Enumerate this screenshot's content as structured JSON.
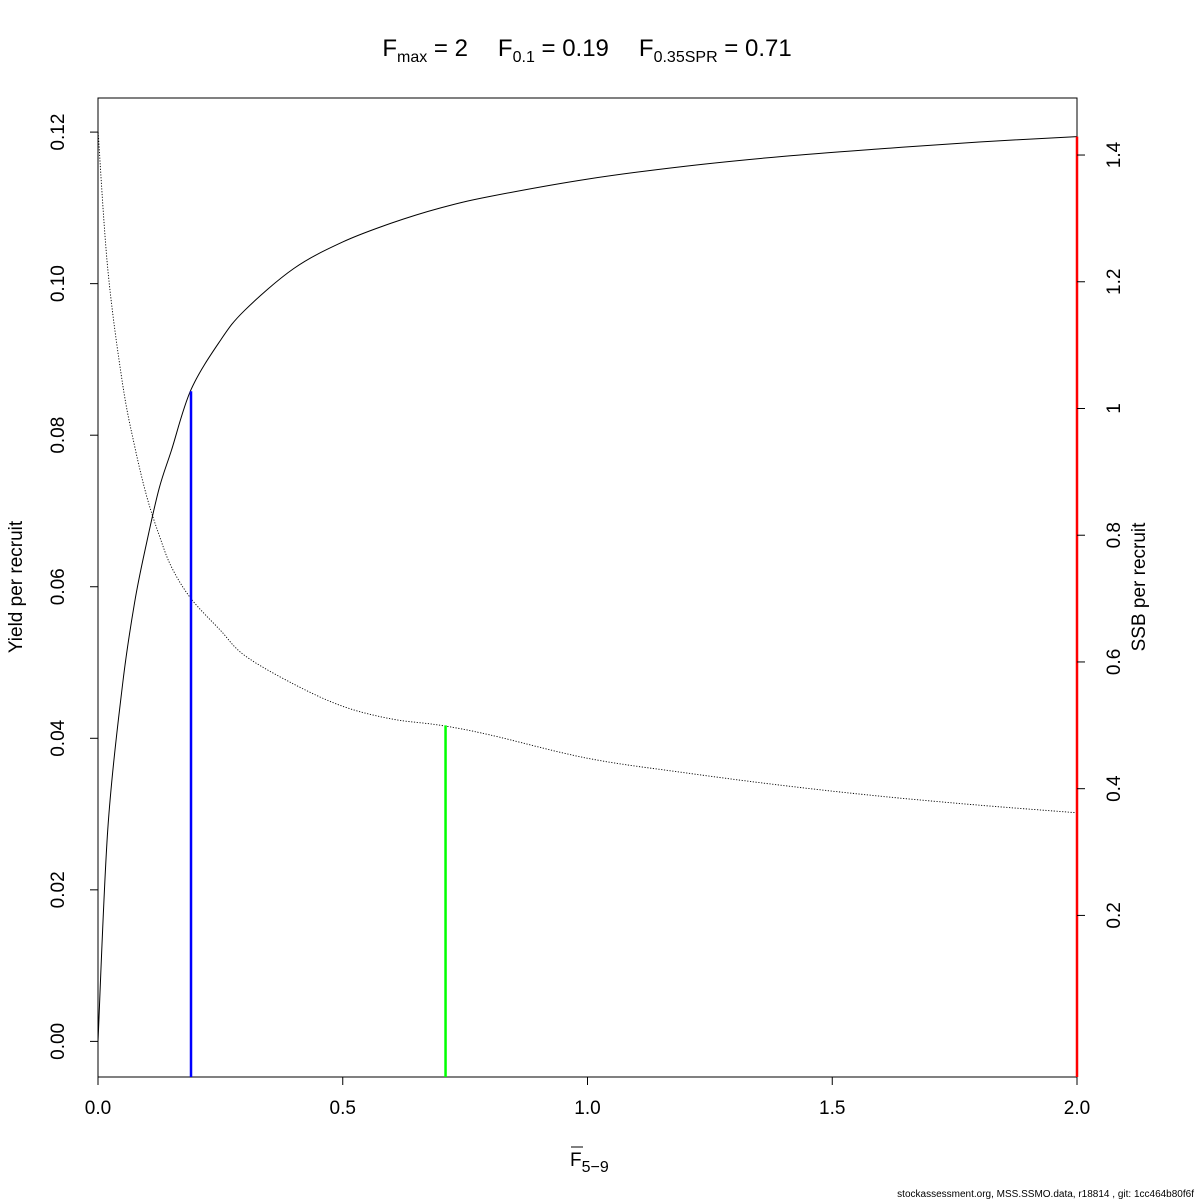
{
  "title": {
    "fmax": {
      "base": "F",
      "sub": "max",
      "rest": " = 2"
    },
    "f01": {
      "base": "F",
      "sub": "0.1",
      "rest": " = 0.19"
    },
    "f035": {
      "base": "F",
      "sub": "0.35SPR",
      "rest": " = 0.71"
    }
  },
  "footer": "stockassessment.org, MSS.SSMO.data, r18814 , git: 1cc464b80f6f",
  "chart_data": {
    "type": "line",
    "xlabel": {
      "base": "F",
      "sub": "5−9",
      "overline": true
    },
    "ylabel_left": "Yield per recruit",
    "ylabel_right": "SSB per recruit",
    "xlim": [
      0,
      2
    ],
    "ylim_left": [
      -0.0047,
      0.1245
    ],
    "ylim_right": [
      -0.055,
      1.49
    ],
    "x_ticks": [
      {
        "value": 0,
        "label": "0.0"
      },
      {
        "value": 0.5,
        "label": "0.5"
      },
      {
        "value": 1,
        "label": "1.0"
      },
      {
        "value": 1.5,
        "label": "1.5"
      },
      {
        "value": 2,
        "label": "2.0"
      }
    ],
    "y_left_ticks": [
      {
        "value": 0,
        "label": "0.00"
      },
      {
        "value": 0.02,
        "label": "0.02"
      },
      {
        "value": 0.04,
        "label": "0.04"
      },
      {
        "value": 0.06,
        "label": "0.06"
      },
      {
        "value": 0.08,
        "label": "0.08"
      },
      {
        "value": 0.1,
        "label": "0.10"
      },
      {
        "value": 0.12,
        "label": "0.12"
      }
    ],
    "y_right_ticks": [
      {
        "value": 0.2,
        "label": "0.2"
      },
      {
        "value": 0.4,
        "label": "0.4"
      },
      {
        "value": 0.6,
        "label": "0.6"
      },
      {
        "value": 0.8,
        "label": "0.8"
      },
      {
        "value": 1,
        "label": "1"
      },
      {
        "value": 1.2,
        "label": "1.2"
      },
      {
        "value": 1.4,
        "label": "1.4"
      }
    ],
    "series": [
      {
        "axis": "left",
        "style": "solid",
        "color": "#000000",
        "x": [
          0,
          0.02,
          0.05,
          0.075,
          0.1,
          0.125,
          0.15,
          0.19,
          0.25,
          0.3,
          0.4,
          0.5,
          0.6,
          0.7,
          0.8,
          1.0,
          1.2,
          1.4,
          1.6,
          1.8,
          2.0
        ],
        "y": [
          0,
          0.028,
          0.047,
          0.058,
          0.066,
          0.073,
          0.078,
          0.086,
          0.0925,
          0.0965,
          0.102,
          0.1055,
          0.108,
          0.11,
          0.1115,
          0.1138,
          0.1155,
          0.1168,
          0.1178,
          0.1187,
          0.1194
        ]
      },
      {
        "axis": "right",
        "style": "dotted",
        "color": "#000000",
        "x": [
          0,
          0.02,
          0.05,
          0.075,
          0.1,
          0.125,
          0.15,
          0.19,
          0.25,
          0.3,
          0.4,
          0.5,
          0.6,
          0.7,
          0.8,
          1.0,
          1.2,
          1.4,
          1.6,
          1.8,
          2.0
        ],
        "y": [
          1.44,
          1.22,
          1.04,
          0.94,
          0.86,
          0.8,
          0.75,
          0.7,
          0.65,
          0.61,
          0.565,
          0.53,
          0.51,
          0.5,
          0.485,
          0.448,
          0.425,
          0.405,
          0.388,
          0.374,
          0.362
        ]
      }
    ],
    "reference_lines": [
      {
        "name": "F0.1",
        "x": 0.19,
        "axis": "left",
        "y_top": 0.0858,
        "color": "#0000ff"
      },
      {
        "name": "F0.35SPR",
        "x": 0.71,
        "axis": "right",
        "y_top": 0.5,
        "color": "#00ff00"
      },
      {
        "name": "Fmax",
        "x": 2.0,
        "axis": "left",
        "y_top": 0.1194,
        "color": "#ff0000"
      }
    ]
  }
}
